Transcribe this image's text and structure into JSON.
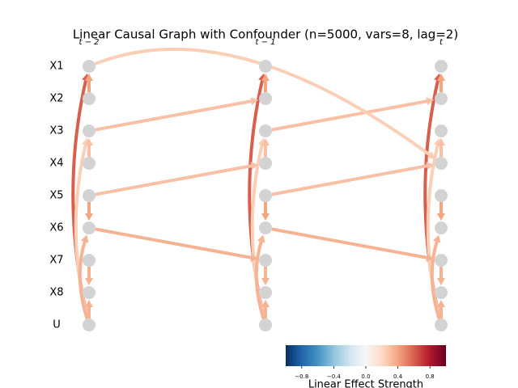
{
  "chart_data": {
    "type": "causal-graph",
    "title": "Linear Causal Graph with Confounder (n=5000, vars=8, lag=2)",
    "nodes": [
      "X1",
      "X2",
      "X3",
      "X4",
      "X5",
      "X6",
      "X7",
      "X8",
      "U"
    ],
    "times": [
      "t − 2",
      "t − 1",
      "t"
    ],
    "node_color": "#d3d3d3",
    "edges": [
      {
        "source": 8,
        "target": 0,
        "lag": 0,
        "value": 0.6
      },
      {
        "source": 1,
        "target": 0,
        "lag": 0,
        "value": 0.4
      },
      {
        "source": 8,
        "target": 2,
        "lag": 0,
        "value": 0.25
      },
      {
        "source": 3,
        "target": 2,
        "lag": 0,
        "value": 0.3
      },
      {
        "source": 4,
        "target": 5,
        "lag": 0,
        "value": 0.4
      },
      {
        "source": 8,
        "target": 5,
        "lag": 0,
        "value": 0.35
      },
      {
        "source": 6,
        "target": 7,
        "lag": 0,
        "value": 0.35
      },
      {
        "source": 8,
        "target": 7,
        "lag": 0,
        "value": 0.35
      },
      {
        "source": 2,
        "target": 1,
        "lag": 1,
        "value": 0.3
      },
      {
        "source": 4,
        "target": 3,
        "lag": 1,
        "value": 0.3
      },
      {
        "source": 5,
        "target": 6,
        "lag": 1,
        "value": 0.35
      },
      {
        "source": 0,
        "target": 3,
        "lag": 2,
        "value": 0.25
      }
    ],
    "colorbar_label": "Linear Effect Strength",
    "clim": [
      -1,
      1
    ],
    "cticks": [
      {
        "value": -0.8,
        "label": "−0.8"
      },
      {
        "value": -0.4,
        "label": "−0.4"
      },
      {
        "value": 0.0,
        "label": "0.0"
      },
      0.4,
      0.8
    ],
    "colormap": [
      "#053061",
      "#2166ac",
      "#4393c3",
      "#92c5de",
      "#d1e5f0",
      "#f7f7f7",
      "#fddbc7",
      "#f4a582",
      "#d6604d",
      "#b2182b",
      "#67001f"
    ]
  }
}
